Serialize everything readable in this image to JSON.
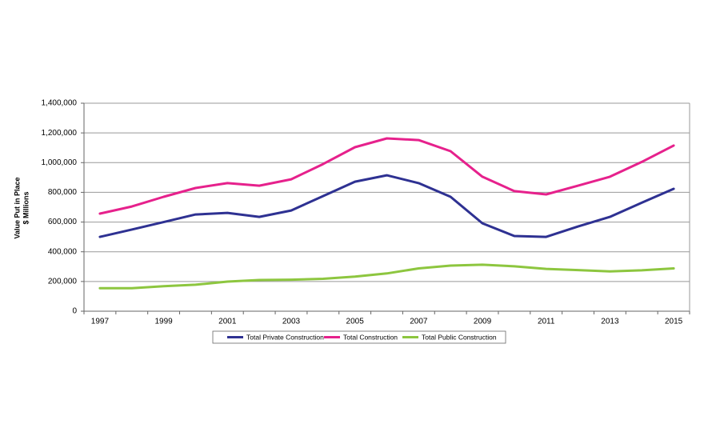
{
  "chart_data": {
    "type": "line",
    "ylabel_lines": [
      "Value Put in Place",
      "$ Millions"
    ],
    "categories": [
      "1997",
      null,
      "1999",
      null,
      "2001",
      null,
      "2003",
      null,
      "2005",
      null,
      "2007",
      null,
      "2009",
      null,
      "2011",
      null,
      "2013",
      null,
      "2015"
    ],
    "series": [
      {
        "name": "Total Private Construction",
        "color": "#2e3192",
        "values": [
          500000,
          550000,
          600000,
          651000,
          662000,
          635000,
          678000,
          775000,
          872000,
          915000,
          862000,
          770000,
          592000,
          506000,
          500000,
          570000,
          635000,
          730000,
          824000
        ]
      },
      {
        "name": "Total Construction",
        "color": "#e6218c",
        "values": [
          657000,
          705000,
          770000,
          829000,
          862000,
          845000,
          888000,
          990000,
          1104000,
          1163000,
          1152000,
          1077000,
          905000,
          808000,
          786000,
          845000,
          905000,
          1005000,
          1115000
        ]
      },
      {
        "name": "Total Public Construction",
        "color": "#8dc63f",
        "values": [
          155000,
          155000,
          168000,
          178000,
          199000,
          210000,
          212000,
          218000,
          233000,
          254000,
          288000,
          307000,
          313000,
          302000,
          285000,
          277000,
          268000,
          275000,
          288000
        ]
      }
    ],
    "ylim": [
      0,
      1400000
    ],
    "yticks": [
      0,
      {
        "value": 200000,
        "label": "200,000"
      },
      {
        "value": 400000,
        "label": "400,000"
      },
      {
        "value": 600000,
        "label": "600,000"
      },
      {
        "value": 800000,
        "label": "800,000"
      },
      {
        "value": 1000000,
        "label": "1,000,000"
      },
      {
        "value": 1200000,
        "label": "1,200,000"
      },
      {
        "value": 1400000,
        "label": "1,400,000"
      }
    ],
    "grid": true,
    "legend": "bottom"
  }
}
